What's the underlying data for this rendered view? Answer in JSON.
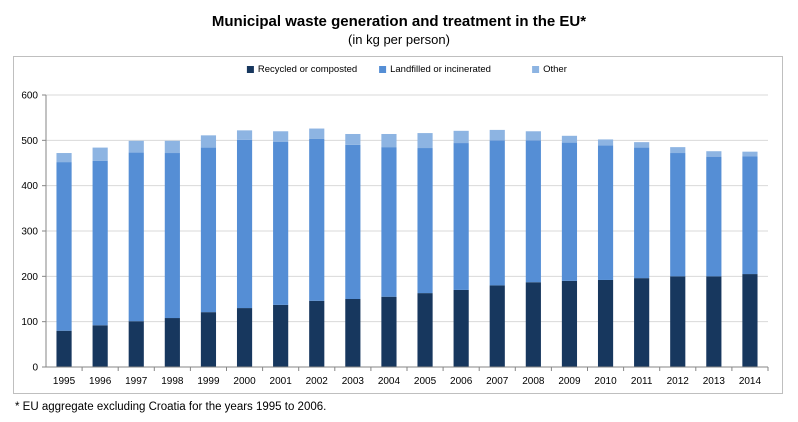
{
  "chart_data": {
    "type": "bar",
    "stacked": true,
    "title": "Municipal waste generation and treatment in the EU*",
    "subtitle": "(in kg per person)",
    "xlabel": "",
    "ylabel": "",
    "ylim": [
      0,
      600
    ],
    "yticks": [
      0,
      100,
      200,
      300,
      400,
      500,
      600
    ],
    "grid": true,
    "legend_position": "top-center",
    "categories": [
      "1995",
      "1996",
      "1997",
      "1998",
      "1999",
      "2000",
      "2001",
      "2002",
      "2003",
      "2004",
      "2005",
      "2006",
      "2007",
      "2008",
      "2009",
      "2010",
      "2011",
      "2012",
      "2013",
      "2014"
    ],
    "series": [
      {
        "name": "Recycled or composted",
        "color": "#17375e",
        "values": [
          80,
          92,
          101,
          108,
          121,
          130,
          137,
          146,
          150,
          155,
          163,
          170,
          180,
          187,
          190,
          192,
          196,
          200,
          200,
          205
        ]
      },
      {
        "name": "Landfilled or incinerated",
        "color": "#558ed5",
        "values": [
          372,
          363,
          372,
          364,
          363,
          371,
          360,
          357,
          340,
          330,
          320,
          324,
          320,
          313,
          305,
          297,
          288,
          272,
          264,
          260
        ]
      },
      {
        "name": "Other",
        "color": "#8db4e2",
        "values": [
          20,
          29,
          26,
          27,
          27,
          21,
          23,
          23,
          24,
          29,
          33,
          27,
          23,
          20,
          15,
          13,
          12,
          13,
          12,
          10
        ]
      }
    ]
  },
  "footnote": "* EU aggregate excluding Croatia for the years 1995 to 2006."
}
